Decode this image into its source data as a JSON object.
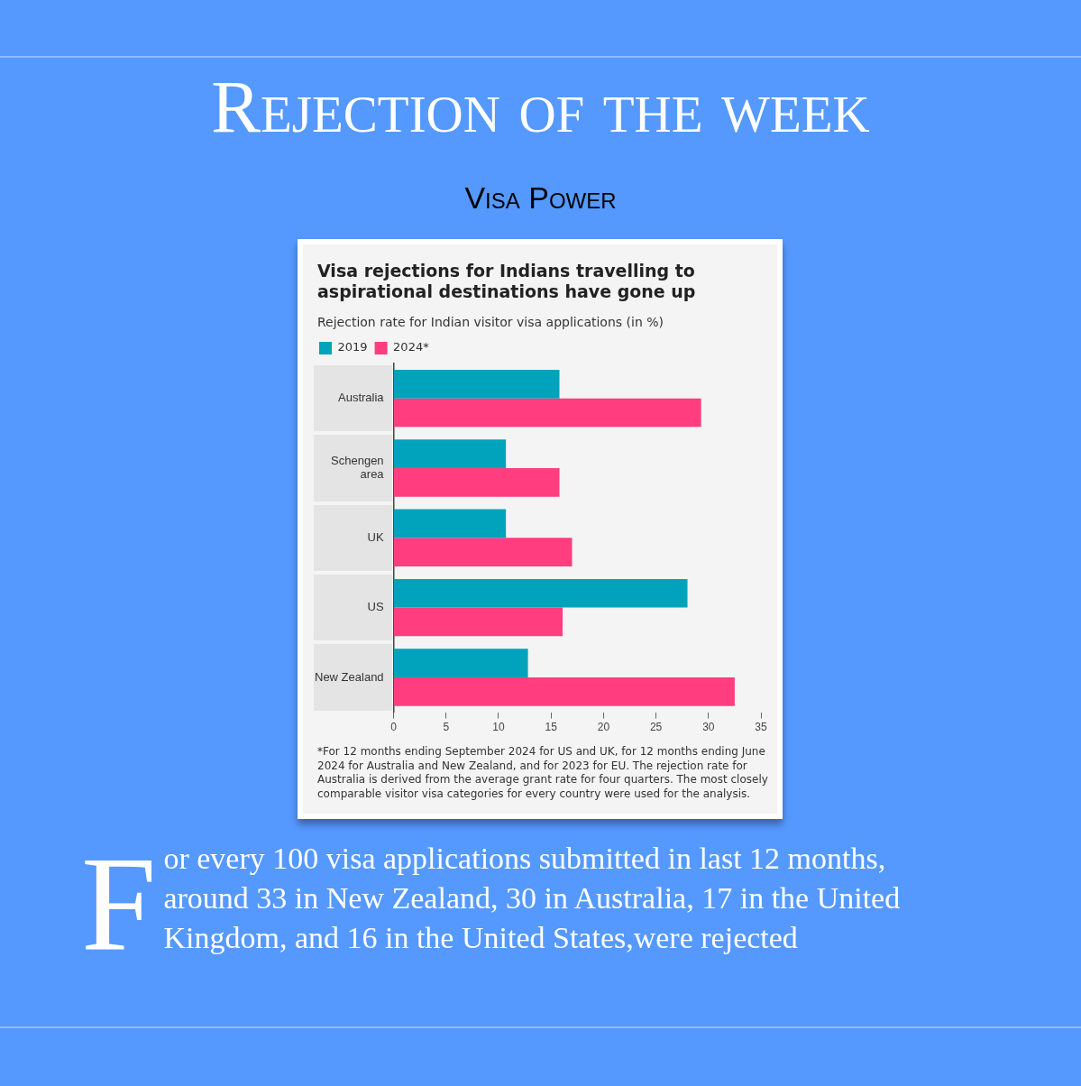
{
  "chart_data": {
    "type": "bar",
    "orientation": "horizontal",
    "title": "Visa rejections for Indians travelling to aspirational destinations have gone up",
    "subtitle": "Rejection rate for Indian visitor visa applications (in %)",
    "categories": [
      "Australia",
      "Schengen area",
      "UK",
      "US",
      "New Zealand"
    ],
    "series": [
      {
        "name": "2019",
        "color": "#00a3bb",
        "values": [
          15.8,
          10.7,
          10.7,
          28.0,
          12.8
        ]
      },
      {
        "name": "2024*",
        "color": "#ff3d7f",
        "values": [
          29.3,
          15.8,
          17.0,
          16.1,
          32.5
        ]
      }
    ],
    "xlim": [
      0,
      35
    ],
    "xticks": [
      0,
      5,
      10,
      15,
      20,
      25,
      30,
      35
    ],
    "grid": false,
    "legend": "top left",
    "annotations": [
      "Rejection of the week",
      "Visa Power",
      "*For 12 months ending September 2024 for US and UK, for 12 months ending June 2024 for Australia and New Zealand, and for 2023 for EU. The rejection rate for Australia is derived from the average grant rate for four quarters. The most closely comparable visitor visa categories for every country were used for the analysis.",
      "For every 100 visa applications submitted in last 12 months, around 33 in New Zealand, 30 in Australia, 17 in the United Kingdom, and 16 in the United States,were rejected"
    ]
  }
}
